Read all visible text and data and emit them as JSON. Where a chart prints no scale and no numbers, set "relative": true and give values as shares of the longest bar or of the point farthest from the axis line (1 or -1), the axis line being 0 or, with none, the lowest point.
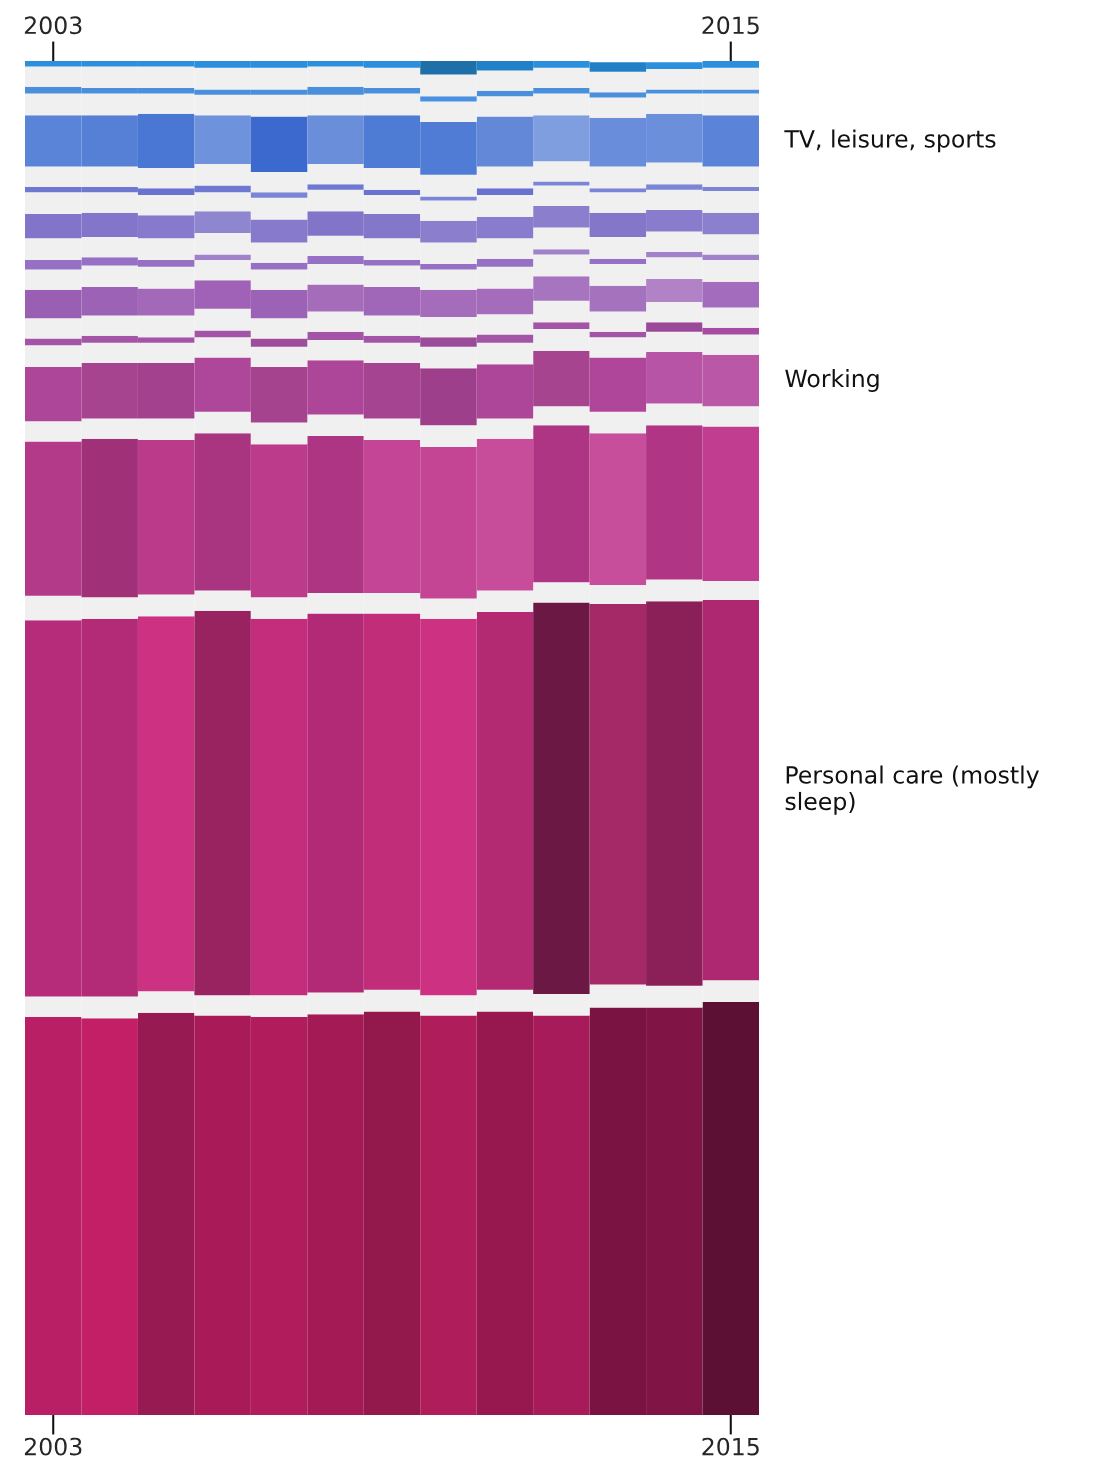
{
  "chart_data": {
    "type": "bar",
    "relative": true,
    "stacked": true,
    "categories": [
      "2003",
      null,
      null,
      null,
      null,
      null,
      null,
      null,
      null,
      null,
      null,
      null,
      "2015"
    ],
    "series": [
      {
        "values": [
          0.294,
          0.293,
          0.297,
          0.295,
          0.294,
          0.296,
          0.298,
          0.295,
          0.298,
          0.295,
          0.301,
          0.301,
          0.305
        ],
        "colors": [
          "#b91f64",
          "#c21f66",
          "#981a52",
          "#a91b58",
          "#b11d5c",
          "#a31a54",
          "#93184c",
          "#b01d5b",
          "#96184f",
          "#a81b5a",
          "#7b1342",
          "#801444",
          "#5c1033"
        ]
      },
      {
        "color": "#f0f0f0",
        "values": [
          0.015,
          0.016,
          0.016,
          0.015,
          0.016,
          0.016,
          0.016,
          0.015,
          0.016,
          0.016,
          0.017,
          0.016,
          0.016
        ]
      },
      {
        "name": "Personal care (mostly sleep)",
        "values": [
          0.278,
          0.279,
          0.277,
          0.284,
          0.278,
          0.28,
          0.278,
          0.278,
          0.279,
          0.289,
          0.281,
          0.284,
          0.281
        ],
        "colors": [
          "#b72c7a",
          "#b32a76",
          "#cc3182",
          "#982360",
          "#c42d7c",
          "#b22a75",
          "#c22d7a",
          "#cc3182",
          "#b32a72",
          "#6c1844",
          "#a52867",
          "#8b1f58",
          "#ad2870"
        ]
      },
      {
        "color": "#f0f0f0",
        "values": [
          0.018,
          0.016,
          0.016,
          0.015,
          0.016,
          0.015,
          0.015,
          0.015,
          0.016,
          0.015,
          0.014,
          0.016,
          0.014
        ]
      },
      {
        "values": [
          0.114,
          0.117,
          0.114,
          0.116,
          0.113,
          0.116,
          0.113,
          0.112,
          0.112,
          0.116,
          0.112,
          0.114,
          0.114
        ],
        "colors": [
          "#b33989",
          "#a03178",
          "#bb3b8a",
          "#a93480",
          "#bc3b8b",
          "#ae3583",
          "#c44595",
          "#c44594",
          "#c74c9a",
          "#ae3484",
          "#c74e9a",
          "#b03584",
          "#c03d90"
        ]
      },
      {
        "color": "#f0f0f0",
        "values": [
          0.015,
          0.015,
          0.016,
          0.016,
          0.016,
          0.016,
          0.016,
          0.016,
          0.015,
          0.014,
          0.016,
          0.016,
          0.015
        ]
      },
      {
        "name": "Working",
        "values": [
          0.04,
          0.041,
          0.041,
          0.04,
          0.041,
          0.04,
          0.041,
          0.042,
          0.04,
          0.041,
          0.04,
          0.038,
          0.038
        ],
        "colors": [
          "#ad4699",
          "#a6448f",
          "#a3418f",
          "#ae4699",
          "#a6438f",
          "#ad4698",
          "#a54491",
          "#9e3f8b",
          "#ad4598",
          "#a64490",
          "#b04699",
          "#b854a5",
          "#ba58a7"
        ]
      },
      {
        "color": "#f0f0f0",
        "values": [
          0.016,
          0.015,
          0.015,
          0.015,
          0.015,
          0.015,
          0.015,
          0.016,
          0.016,
          0.016,
          0.015,
          0.015,
          0.015
        ]
      },
      {
        "values": [
          0.005,
          0.005,
          0.004,
          0.005,
          0.006,
          0.006,
          0.005,
          0.007,
          0.006,
          0.005,
          0.004,
          0.007,
          0.005
        ],
        "colors": [
          "#a454a6",
          "#a454a6",
          "#a454a6",
          "#a454a6",
          "#9e4c9c",
          "#a454a6",
          "#a454a6",
          "#9a4c98",
          "#a454a6",
          "#a454a6",
          "#a454a6",
          "#9a4898",
          "#a64ca2"
        ]
      },
      {
        "color": "#f0f0f0",
        "values": [
          0.015,
          0.015,
          0.016,
          0.016,
          0.015,
          0.015,
          0.015,
          0.015,
          0.015,
          0.016,
          0.015,
          0.015,
          0.015
        ]
      },
      {
        "values": [
          0.021,
          0.021,
          0.02,
          0.021,
          0.021,
          0.02,
          0.021,
          0.02,
          0.019,
          0.018,
          0.019,
          0.017,
          0.019
        ],
        "colors": [
          "#9a5eb3",
          "#9c62b5",
          "#a468b9",
          "#9f62b6",
          "#9c62b5",
          "#a56cba",
          "#a066b7",
          "#a46cba",
          "#a46cba",
          "#a774bf",
          "#a572bd",
          "#b282c6",
          "#a46cbd"
        ]
      },
      {
        "color": "#f0f0f0",
        "values": [
          0.015,
          0.016,
          0.016,
          0.015,
          0.015,
          0.015,
          0.016,
          0.015,
          0.016,
          0.016,
          0.016,
          0.016,
          0.016
        ]
      },
      {
        "values": [
          0.007,
          0.006,
          0.005,
          0.004,
          0.005,
          0.006,
          0.004,
          0.004,
          0.006,
          0.004,
          0.004,
          0.004,
          0.004
        ],
        "colors": [
          "#9670c4",
          "#9670c4",
          "#9670c4",
          "#a082ca",
          "#9670c4",
          "#9670c4",
          "#9670c4",
          "#9670c4",
          "#9670c4",
          "#a082ca",
          "#9670c4",
          "#a082ca",
          "#a082ca"
        ]
      },
      {
        "color": "#f0f0f0",
        "values": [
          0.016,
          0.015,
          0.016,
          0.016,
          0.015,
          0.015,
          0.016,
          0.016,
          0.015,
          0.016,
          0.016,
          0.015,
          0.015
        ]
      },
      {
        "values": [
          0.018,
          0.018,
          0.017,
          0.016,
          0.017,
          0.018,
          0.018,
          0.016,
          0.016,
          0.016,
          0.018,
          0.016,
          0.016
        ],
        "colors": [
          "#8174c9",
          "#8376ca",
          "#877acc",
          "#8f86d0",
          "#877acc",
          "#8174c9",
          "#8377ca",
          "#8a7ecd",
          "#897ccc",
          "#8a7ecd",
          "#8477ca",
          "#897ccc",
          "#8b80cd"
        ]
      },
      {
        "color": "#f0f0f0",
        "values": [
          0.016,
          0.015,
          0.015,
          0.014,
          0.016,
          0.016,
          0.014,
          0.015,
          0.016,
          0.015,
          0.015,
          0.015,
          0.016
        ]
      },
      {
        "values": [
          0.004,
          0.004,
          0.005,
          0.005,
          0.004,
          0.004,
          0.004,
          0.003,
          0.005,
          0.003,
          0.003,
          0.004,
          0.003
        ],
        "colors": [
          "#6e78d0",
          "#6e78d0",
          "#6a72cf",
          "#6e78d0",
          "#7a85d6",
          "#6e78d0",
          "#6a72cf",
          "#7a85d6",
          "#6a72cf",
          "#7a85d6",
          "#7a85d6",
          "#7a85d6",
          "#7a85d6"
        ]
      },
      {
        "color": "#f0f0f0",
        "values": [
          0.015,
          0.015,
          0.015,
          0.016,
          0.015,
          0.015,
          0.016,
          0.016,
          0.016,
          0.015,
          0.016,
          0.016,
          0.015
        ]
      },
      {
        "name": "TV, leisure, sports",
        "values": [
          0.038,
          0.038,
          0.04,
          0.036,
          0.041,
          0.036,
          0.039,
          0.039,
          0.037,
          0.034,
          0.036,
          0.036,
          0.038
        ],
        "colors": [
          "#5a84d8",
          "#5680d6",
          "#4a77d3",
          "#6e92db",
          "#3b69cd",
          "#6a8ed9",
          "#4e7bd4",
          "#517cd5",
          "#6388d8",
          "#7f9edf",
          "#698dda",
          "#6b8fdb",
          "#5b83d8"
        ]
      },
      {
        "color": "#f0f0f0",
        "values": [
          0.016,
          0.016,
          0.015,
          0.015,
          0.016,
          0.015,
          0.016,
          0.015,
          0.015,
          0.016,
          0.015,
          0.015,
          0.016
        ]
      },
      {
        "values": [
          0.005,
          0.004,
          0.004,
          0.004,
          0.004,
          0.006,
          0.004,
          0.004,
          0.004,
          0.004,
          0.004,
          0.003,
          0.003
        ],
        "colors": [
          "#4a8fdb",
          "#4a8fdb",
          "#4a8fdb",
          "#4a8fdb",
          "#4a8fdb",
          "#4a8fdb",
          "#4a8fdb",
          "#4a90e0",
          "#4a8fdb",
          "#4a8fdb",
          "#4a8fdb",
          "#4a8fdb",
          "#4a8fdb"
        ]
      },
      {
        "color": "#f0f0f0",
        "values": [
          0.015,
          0.016,
          0.016,
          0.016,
          0.016,
          0.015,
          0.015,
          0.016,
          0.015,
          0.015,
          0.015,
          0.015,
          0.016
        ]
      },
      {
        "values": [
          0.004,
          0.004,
          0.004,
          0.005,
          0.005,
          0.004,
          0.005,
          0.01,
          0.007,
          0.005,
          0.007,
          0.005,
          0.005
        ],
        "colors": [
          "#2b8fdc",
          "#2b8fdc",
          "#2b8fdc",
          "#2b8fdc",
          "#2b8fdc",
          "#2b8fdc",
          "#2b8fdc",
          "#1f6fa8",
          "#2280c8",
          "#2b8fdc",
          "#2380c6",
          "#2b8fdc",
          "#2b8fdc"
        ]
      }
    ]
  }
}
